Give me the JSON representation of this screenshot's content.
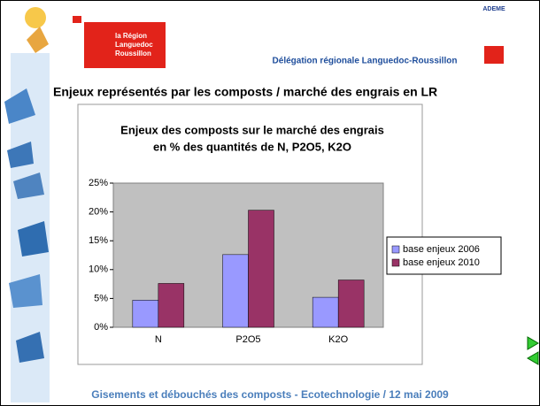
{
  "header": {
    "region_logo": [
      "la Région",
      "Languedoc",
      "Roussillon"
    ],
    "delegation": "Délégation régionale Languedoc-Roussillon",
    "agency": "ADEME"
  },
  "slide_title": "Enjeux représentés par les composts / marché des engrais en LR",
  "chart_data": {
    "type": "bar",
    "title": [
      "Enjeux des composts sur le marché des engrais",
      "en % des quantités de N, P2O5, K2O"
    ],
    "categories": [
      "N",
      "P2O5",
      "K2O"
    ],
    "series": [
      {
        "name": "base enjeux 2006",
        "color": "#9999ff",
        "values": [
          4.7,
          12.6,
          5.2
        ]
      },
      {
        "name": "base enjeux 2010",
        "color": "#993366",
        "values": [
          7.6,
          20.3,
          8.2
        ]
      }
    ],
    "ylim": [
      0,
      25
    ],
    "yticks": [
      {
        "value": 0,
        "label": "0%"
      },
      {
        "value": 5,
        "label": "5%"
      },
      {
        "value": 10,
        "label": "10%"
      },
      {
        "value": 15,
        "label": "15%"
      },
      {
        "value": 20,
        "label": "20%"
      },
      {
        "value": 25,
        "label": "25%"
      }
    ],
    "grid": false,
    "legend": "right"
  },
  "footer": "Gisements et débouchés des composts -  Ecotechnologie  /  12 mai 2009"
}
